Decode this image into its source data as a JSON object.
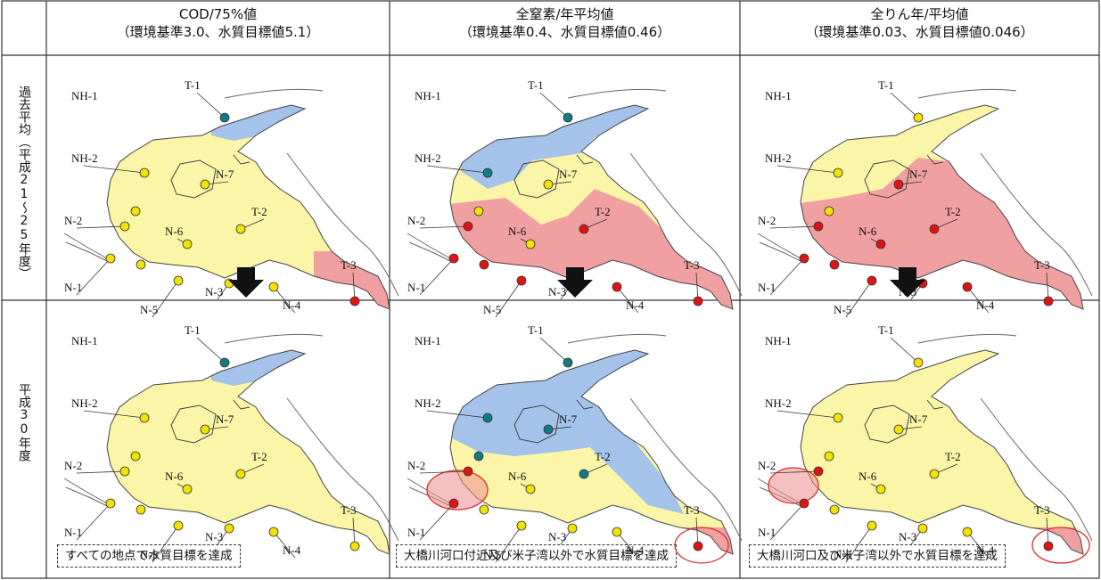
{
  "columns": [
    {
      "title": "COD/75%値",
      "subtitle": "（環境基準3.0、水質目標値5.1）"
    },
    {
      "title": "全窒素/年平均値",
      "subtitle": "（環境基準0.4、水質目標値0.46）"
    },
    {
      "title": "全りん年/平均値",
      "subtitle": "（環境基準0.03、水質目標値0.046）"
    }
  ],
  "rows": [
    {
      "label": "過去平均（平成21〜25年度）"
    },
    {
      "label": "平成30年度"
    }
  ],
  "captions": [
    "すべての地点で水質目標を達成",
    "大橋川河口付近及び米子湾以外で水質目標を達成",
    "大橋川河口及び米子湾以外で水質目標を達成"
  ],
  "station_labels": [
    "NH-1",
    "T-1",
    "NH-2",
    "N-7",
    "T-2",
    "N-2",
    "N-6",
    "T-3",
    "N-1",
    "N-5",
    "N-3",
    "N-4"
  ],
  "colors": {
    "yellow": "#fbf5a8",
    "blue": "#a4c2ea",
    "red": "#f0a0a0",
    "yellow_dot": "#f2e200",
    "red_dot": "#e01414",
    "teal_dot": "#137a84",
    "arrow": "#111111"
  }
}
